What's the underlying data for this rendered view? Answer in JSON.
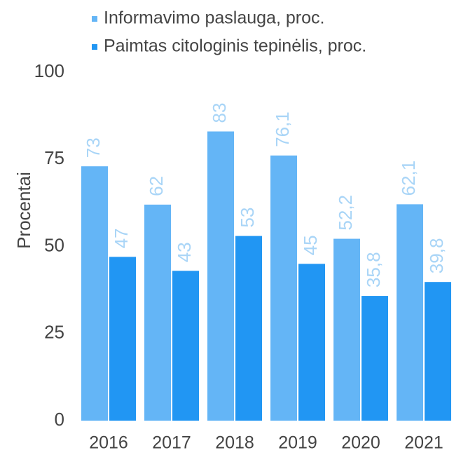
{
  "chart_data": {
    "type": "bar",
    "y_label": "Procentai",
    "categories": [
      "2016",
      "2017",
      "2018",
      "2019",
      "2020",
      "2021"
    ],
    "series": [
      {
        "name": "Informavimo paslauga, proc.",
        "color": "#64b5f6",
        "values": [
          73,
          62,
          83,
          76.1,
          52.2,
          62.1
        ],
        "value_labels": [
          "73",
          "62",
          "83",
          "76,1",
          "52,2",
          "62,1"
        ]
      },
      {
        "name": "Paimtas citologinis tepinėlis, proc.",
        "color": "#2196f3",
        "values": [
          47,
          43,
          53,
          45,
          35.8,
          39.8
        ],
        "value_labels": [
          "47",
          "43",
          "53",
          "45",
          "35,8",
          "39,8"
        ]
      }
    ],
    "ylim": [
      0,
      100
    ],
    "yticks": [
      0,
      25,
      50,
      75,
      100
    ],
    "grid": false,
    "value_label_color": "#a9d5f7",
    "legend_position": "top"
  }
}
